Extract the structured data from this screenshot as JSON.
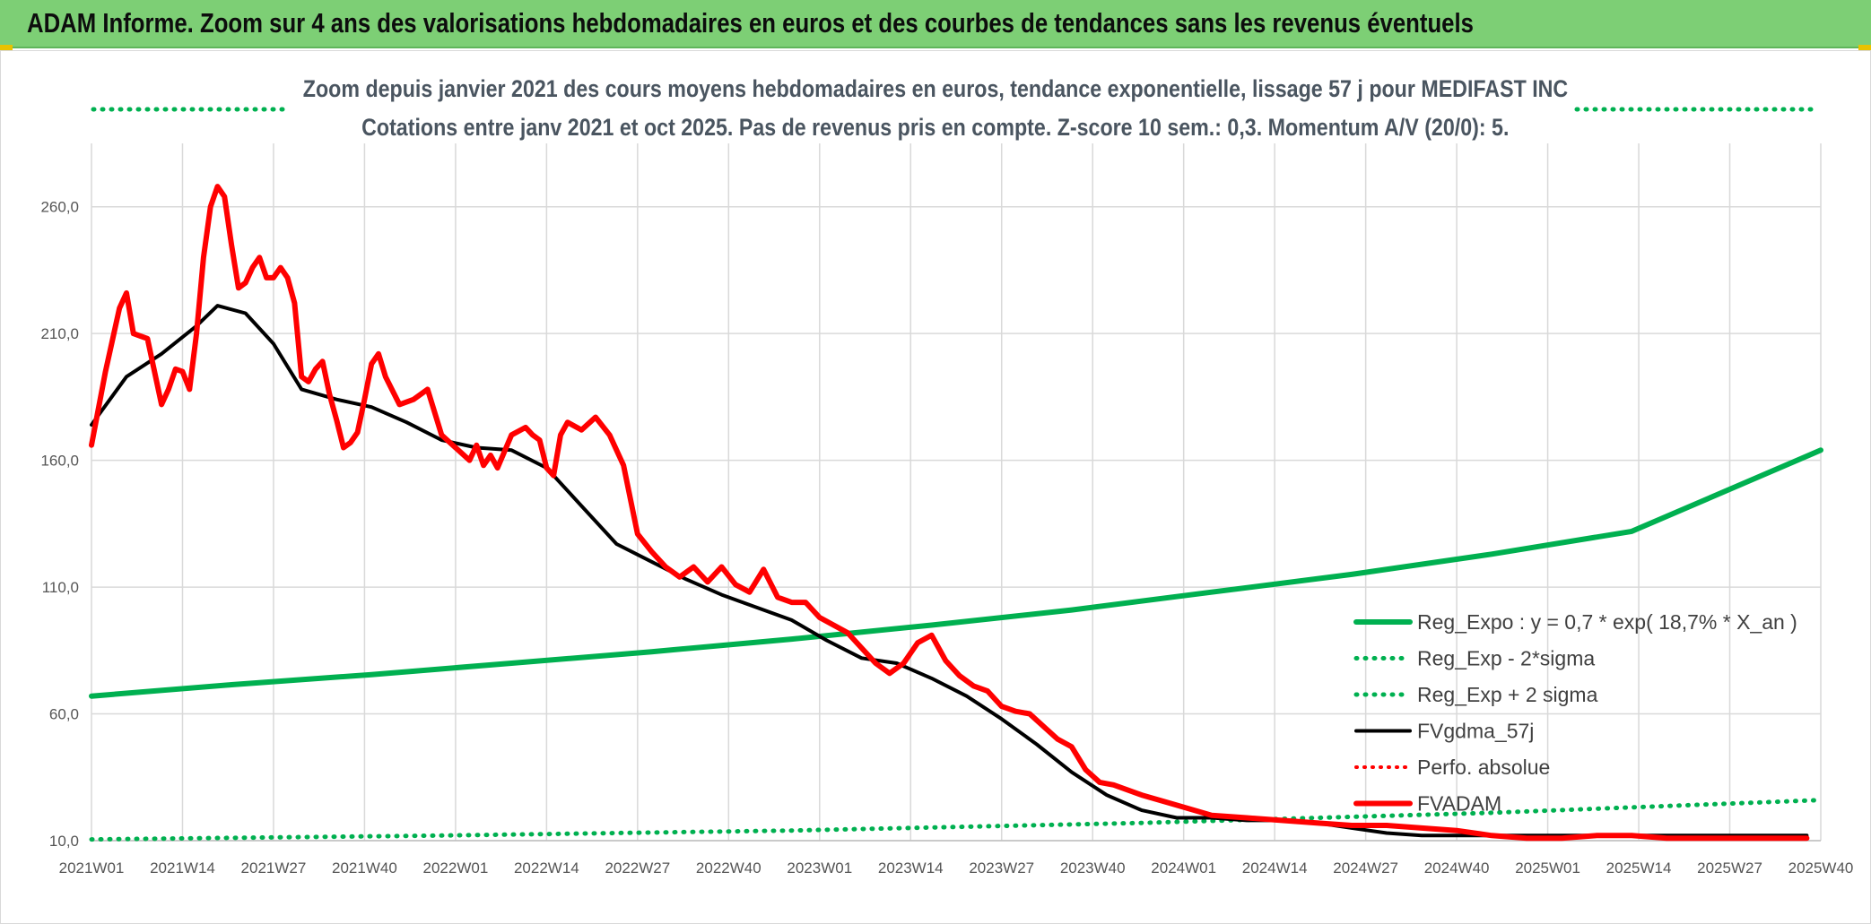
{
  "banner": {
    "title": "ADAM Informe. Zoom sur 4 ans des valorisations hebdomadaires en euros et des courbes de tendances sans les revenus éventuels"
  },
  "chart_data": {
    "type": "line",
    "title": "Zoom depuis janvier 2021 des cours moyens hebdomadaires en euros, tendance exponentielle, lissage 57 j pour MEDIFAST INC",
    "subtitle": "Cotations entre janv 2021 et oct 2025. Pas de revenus pris en compte. Z-score 10 sem.: 0,3. Momentum A/V (20/0): 5.",
    "xlabel": "",
    "ylabel": "",
    "ylim": [
      10,
      285
    ],
    "y_ticks": [
      10,
      60,
      110,
      160,
      210,
      260
    ],
    "y_tick_labels": [
      "10,0",
      "60,0",
      "110,0",
      "160,0",
      "210,0",
      "260,0"
    ],
    "x_tick_labels": [
      "2021W01",
      "2021W14",
      "2021W27",
      "2021W40",
      "2022W01",
      "2022W14",
      "2022W27",
      "2022W40",
      "2023W01",
      "2023W14",
      "2023W27",
      "2023W40",
      "2024W01",
      "2024W14",
      "2024W27",
      "2024W40",
      "2025W01",
      "2025W14",
      "2025W27",
      "2025W40"
    ],
    "grid": true,
    "legend_position": "bottom-right",
    "colors": {
      "green": "#00b050",
      "black": "#000000",
      "red": "#ff0000"
    },
    "series": [
      {
        "name": "Reg_Expo : y = 0,7 * exp( 18,7% *  X_an )",
        "style": "solid",
        "color": "#00b050",
        "x": [
          0,
          20,
          40,
          60,
          80,
          100,
          120,
          140,
          160,
          180,
          200,
          220,
          247
        ],
        "values": [
          67,
          71.5,
          75.5,
          80,
          84.5,
          89.5,
          95,
          101,
          108,
          115,
          123,
          132,
          164
        ]
      },
      {
        "name": "Reg_Exp - 2*sigma",
        "style": "dotted",
        "color": "#00b050",
        "x": [
          0,
          50,
          100,
          150,
          200,
          247
        ],
        "values": [
          10.5,
          12,
          14,
          17,
          21,
          26
        ]
      },
      {
        "name": "Reg_Exp + 2 sigma",
        "style": "dotted",
        "color": "#00b050",
        "x": [
          0,
          247
        ],
        "values": [
          294,
          294
        ]
      },
      {
        "name": "FVgdma_57j",
        "style": "solid",
        "color": "#000000",
        "x": [
          0,
          5,
          10,
          15,
          18,
          22,
          26,
          30,
          35,
          40,
          45,
          50,
          55,
          60,
          65,
          70,
          75,
          80,
          85,
          90,
          95,
          100,
          105,
          110,
          115,
          120,
          125,
          130,
          135,
          140,
          145,
          150,
          155,
          160,
          165,
          170,
          175,
          180,
          185,
          190,
          195,
          200,
          205,
          210,
          215,
          220,
          225,
          230,
          235,
          240,
          245
        ],
        "values": [
          174,
          193,
          202,
          213,
          221,
          218,
          206,
          188,
          184,
          181,
          175,
          168,
          165,
          164,
          157,
          142,
          127,
          120,
          113,
          107,
          102,
          97,
          89,
          82,
          80,
          74,
          67,
          58,
          48,
          37,
          28,
          22,
          19,
          19,
          18,
          18,
          17,
          15,
          13,
          12,
          12,
          12,
          12,
          12,
          12,
          12,
          12,
          12,
          12,
          12,
          12
        ]
      },
      {
        "name": "Perfo. absolue",
        "style": "dotted",
        "color": "#ff0000",
        "x": [],
        "values": []
      },
      {
        "name": "FVADAM",
        "style": "solid",
        "color": "#ff0000",
        "x": [
          0,
          2,
          4,
          5,
          6,
          7,
          8,
          10,
          11,
          12,
          13,
          14,
          15,
          16,
          17,
          18,
          19,
          20,
          21,
          22,
          23,
          24,
          25,
          26,
          27,
          28,
          29,
          30,
          31,
          32,
          33,
          34,
          35,
          36,
          37,
          38,
          39,
          40,
          41,
          42,
          44,
          46,
          48,
          50,
          52,
          54,
          55,
          56,
          57,
          58,
          60,
          62,
          63,
          64,
          65,
          66,
          67,
          68,
          70,
          72,
          74,
          76,
          78,
          80,
          82,
          84,
          86,
          88,
          90,
          92,
          94,
          96,
          98,
          100,
          102,
          104,
          106,
          108,
          110,
          112,
          114,
          116,
          118,
          120,
          122,
          124,
          126,
          128,
          130,
          132,
          134,
          136,
          138,
          140,
          142,
          144,
          146,
          148,
          150,
          155,
          160,
          165,
          170,
          175,
          180,
          185,
          190,
          195,
          200,
          205,
          210,
          215,
          220,
          225,
          230,
          235,
          240,
          245
        ],
        "values": [
          166,
          195,
          220,
          226,
          210,
          209,
          208,
          182,
          188,
          196,
          195,
          188,
          210,
          240,
          260,
          268,
          264,
          245,
          228,
          230,
          236,
          240,
          232,
          232,
          236,
          232,
          222,
          193,
          191,
          196,
          199,
          186,
          176,
          165,
          167,
          171,
          184,
          198,
          202,
          193,
          182,
          184,
          188,
          170,
          165,
          160,
          166,
          158,
          162,
          157,
          170,
          173,
          170,
          168,
          157,
          154,
          170,
          175,
          172,
          177,
          170,
          158,
          131,
          124,
          118,
          114,
          118,
          112,
          118,
          111,
          108,
          117,
          106,
          104,
          104,
          98,
          95,
          92,
          86,
          80,
          76,
          80,
          88,
          91,
          81,
          75,
          71,
          69,
          63,
          61,
          60,
          55,
          50,
          47,
          38,
          33,
          32,
          30,
          28,
          24,
          20,
          19,
          18,
          17,
          16,
          16,
          15,
          14,
          12,
          11,
          11,
          12,
          12,
          11,
          11,
          11,
          11,
          11
        ]
      }
    ]
  }
}
